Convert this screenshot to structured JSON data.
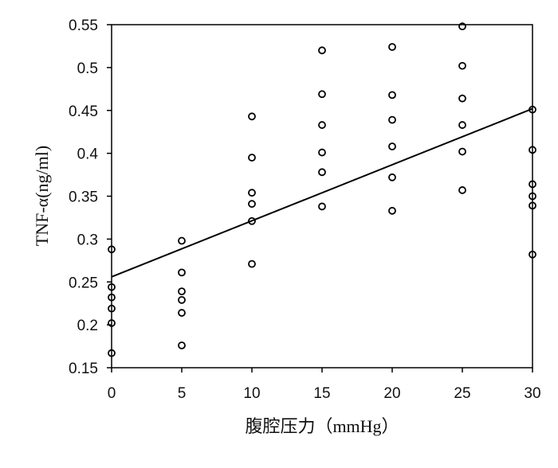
{
  "chart_data": {
    "type": "scatter",
    "xlabel": "腹腔压力（mmHg）",
    "ylabel": "TNF-α(ng/ml)",
    "xlim": [
      0,
      30
    ],
    "ylim": [
      0.15,
      0.55
    ],
    "x_ticks": [
      "0",
      "5",
      "10",
      "15",
      "20",
      "25",
      "30"
    ],
    "y_ticks": [
      "0.15",
      "0.2",
      "0.25",
      "0.3",
      "0.35",
      "0.4",
      "0.45",
      "0.5",
      "0.55"
    ],
    "grid": false,
    "legend": "none",
    "points": [
      {
        "x": 0,
        "y": 0.288
      },
      {
        "x": 0,
        "y": 0.244
      },
      {
        "x": 0,
        "y": 0.232
      },
      {
        "x": 0,
        "y": 0.219
      },
      {
        "x": 0,
        "y": 0.202
      },
      {
        "x": 0,
        "y": 0.167
      },
      {
        "x": 5,
        "y": 0.298
      },
      {
        "x": 5,
        "y": 0.261
      },
      {
        "x": 5,
        "y": 0.239
      },
      {
        "x": 5,
        "y": 0.229
      },
      {
        "x": 5,
        "y": 0.214
      },
      {
        "x": 5,
        "y": 0.176
      },
      {
        "x": 10,
        "y": 0.443
      },
      {
        "x": 10,
        "y": 0.395
      },
      {
        "x": 10,
        "y": 0.354
      },
      {
        "x": 10,
        "y": 0.341
      },
      {
        "x": 10,
        "y": 0.321
      },
      {
        "x": 10,
        "y": 0.271
      },
      {
        "x": 15,
        "y": 0.52
      },
      {
        "x": 15,
        "y": 0.469
      },
      {
        "x": 15,
        "y": 0.433
      },
      {
        "x": 15,
        "y": 0.401
      },
      {
        "x": 15,
        "y": 0.378
      },
      {
        "x": 15,
        "y": 0.338
      },
      {
        "x": 20,
        "y": 0.524
      },
      {
        "x": 20,
        "y": 0.468
      },
      {
        "x": 20,
        "y": 0.439
      },
      {
        "x": 20,
        "y": 0.408
      },
      {
        "x": 20,
        "y": 0.372
      },
      {
        "x": 20,
        "y": 0.333
      },
      {
        "x": 25,
        "y": 0.548
      },
      {
        "x": 25,
        "y": 0.502
      },
      {
        "x": 25,
        "y": 0.464
      },
      {
        "x": 25,
        "y": 0.433
      },
      {
        "x": 25,
        "y": 0.402
      },
      {
        "x": 25,
        "y": 0.357
      },
      {
        "x": 30,
        "y": 0.451
      },
      {
        "x": 30,
        "y": 0.404
      },
      {
        "x": 30,
        "y": 0.364
      },
      {
        "x": 30,
        "y": 0.35
      },
      {
        "x": 30,
        "y": 0.339
      },
      {
        "x": 30,
        "y": 0.282
      }
    ],
    "trendline": {
      "x": [
        0,
        30
      ],
      "y": [
        0.256,
        0.452
      ]
    }
  }
}
